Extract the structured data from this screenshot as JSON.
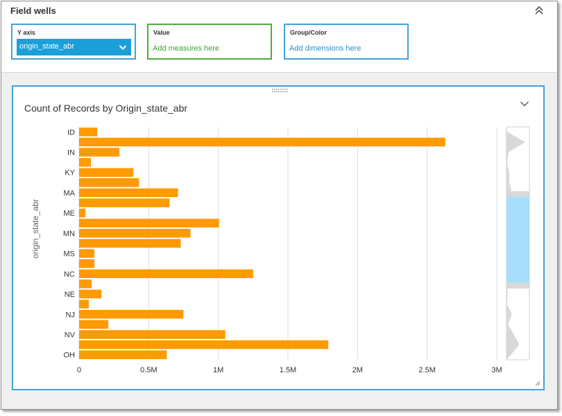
{
  "field_wells": {
    "title": "Field wells",
    "y_axis": {
      "label": "Y axis",
      "value": "origin_state_abr"
    },
    "value": {
      "label": "Value",
      "placeholder": "Add measures here"
    },
    "group_color": {
      "label": "Group/Color",
      "placeholder": "Add dimensions here"
    }
  },
  "visual": {
    "title": "Count of Records by Origin_state_abr"
  },
  "colors": {
    "bar": "#ff9a00",
    "accent": "#3fa3d8",
    "value_well": "#4caf38",
    "pill": "#1c9fd9",
    "scroll_window": "#a8defa"
  },
  "icons": {
    "collapse": "double-chevron-up-icon",
    "pill_dropdown": "chevron-down-icon",
    "visual_menu": "chevron-down-icon",
    "drag": "drag-handle-icon",
    "resize": "resize-handle-icon"
  },
  "chart_data": {
    "type": "bar",
    "orientation": "horizontal",
    "title": "Count of Records by Origin_state_abr",
    "ylabel": "origin_state_abr",
    "xlabel": "",
    "bars": [
      {
        "label": "ID",
        "value": 130000
      },
      {
        "label": "",
        "value": 2630000
      },
      {
        "label": "IN",
        "value": 290000
      },
      {
        "label": "",
        "value": 85000
      },
      {
        "label": "KY",
        "value": 390000
      },
      {
        "label": "",
        "value": 430000
      },
      {
        "label": "MA",
        "value": 710000
      },
      {
        "label": "",
        "value": 650000
      },
      {
        "label": "ME",
        "value": 45000
      },
      {
        "label": "",
        "value": 1005000
      },
      {
        "label": "MN",
        "value": 800000
      },
      {
        "label": "",
        "value": 730000
      },
      {
        "label": "MS",
        "value": 110000
      },
      {
        "label": "",
        "value": 110000
      },
      {
        "label": "NC",
        "value": 1250000
      },
      {
        "label": "",
        "value": 90000
      },
      {
        "label": "NE",
        "value": 160000
      },
      {
        "label": "",
        "value": 70000
      },
      {
        "label": "NJ",
        "value": 750000
      },
      {
        "label": "",
        "value": 210000
      },
      {
        "label": "NV",
        "value": 1050000
      },
      {
        "label": "",
        "value": 1790000
      },
      {
        "label": "OH",
        "value": 630000
      }
    ],
    "xticks": [
      {
        "value": 0,
        "label": "0"
      },
      {
        "value": 500000,
        "label": "0.5M"
      },
      {
        "value": 1000000,
        "label": "1M"
      },
      {
        "value": 1500000,
        "label": "1.5M"
      },
      {
        "value": 2000000,
        "label": "2M"
      },
      {
        "value": 2500000,
        "label": "2.5M"
      },
      {
        "value": 3000000,
        "label": "3M"
      }
    ],
    "xlim": [
      0,
      3000000
    ],
    "grid": true,
    "legend": "none",
    "scroll_window": {
      "start_fraction": 0.3,
      "end_fraction": 0.67
    }
  }
}
